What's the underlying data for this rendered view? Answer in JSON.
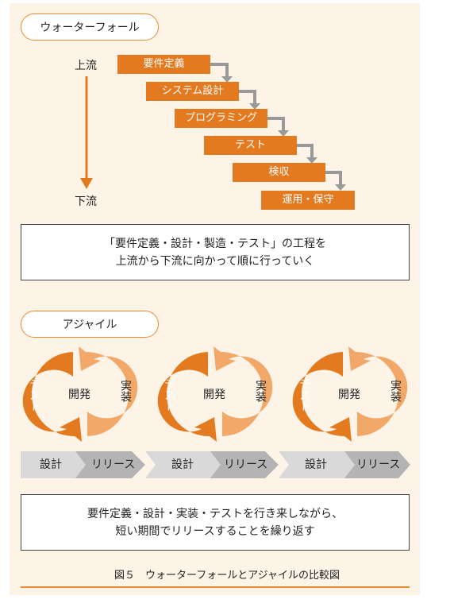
{
  "waterfall": {
    "title": "ウォーターフォール",
    "upstream": "上流",
    "downstream": "下流",
    "steps": [
      "要件定義",
      "システム設計",
      "プログラミング",
      "テスト",
      "検収",
      "運用・保守"
    ],
    "note_line1": "「要件定義・設計・製造・テスト」の工程を",
    "note_line2": "上流から下流に向かって順に行っていく"
  },
  "agile": {
    "title": "アジャイル",
    "cycle_left": "テスト",
    "cycle_center": "開発",
    "cycle_right": "実装",
    "design": "設計",
    "release": "リリース",
    "note_line1": "要件定義・設計・実装・テストを行き来しながら、",
    "note_line2": "短い期間でリリースすることを繰り返す"
  },
  "caption": "図５　ウォーターフォールとアジャイルの比較図",
  "colors": {
    "orange": "#e37a1f",
    "light_orange": "#f1a868",
    "gray": "#b4b4b4",
    "light_gray": "#d9d9d9",
    "background": "#fdf4e7"
  }
}
